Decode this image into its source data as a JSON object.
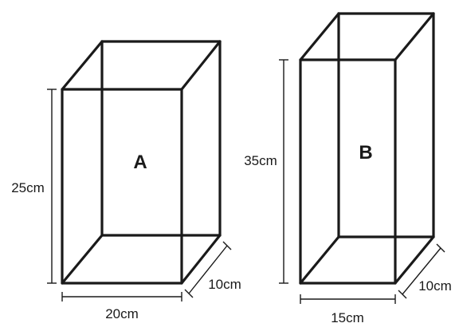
{
  "boxes": [
    {
      "label": "A",
      "height": "25cm",
      "width": "20cm",
      "depth": "10cm"
    },
    {
      "label": "B",
      "height": "35cm",
      "width": "15cm",
      "depth": "10cm"
    }
  ],
  "colors": {
    "line": "#1a1a1a",
    "background": "#ffffff"
  }
}
